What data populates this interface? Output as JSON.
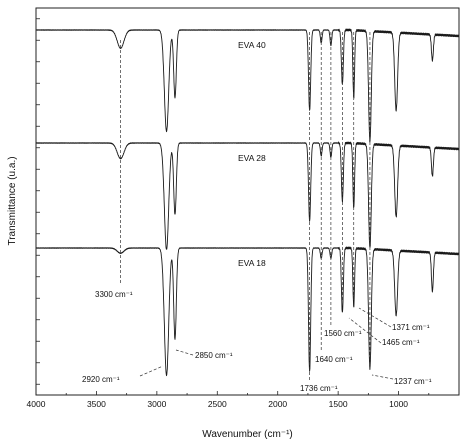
{
  "chart_data": {
    "type": "line",
    "title": "",
    "xlabel": "Wavenumber (cm⁻¹)",
    "ylabel": "Transmittance (u.a.)",
    "xlim": [
      4000,
      500
    ],
    "x_reversed": true,
    "x_ticks": [
      4000,
      3500,
      3000,
      2500,
      2000,
      1500,
      1000
    ],
    "y_tick_count": 18,
    "y_tick_labels_shown": false,
    "grid": false,
    "legend": "none",
    "series": [
      {
        "name": "EVA 40",
        "offset_level": 3,
        "peaks": [
          [
            3300,
            0.14
          ],
          [
            2920,
            0.78
          ],
          [
            2850,
            0.52
          ],
          [
            1736,
            0.62
          ],
          [
            1640,
            0.1
          ],
          [
            1560,
            0.12
          ],
          [
            1465,
            0.42
          ],
          [
            1371,
            0.52
          ],
          [
            1237,
            0.85
          ],
          [
            1020,
            0.6
          ],
          [
            720,
            0.2
          ]
        ]
      },
      {
        "name": "EVA  28",
        "offset_level": 2,
        "peaks": [
          [
            3300,
            0.12
          ],
          [
            2920,
            0.82
          ],
          [
            2850,
            0.55
          ],
          [
            1736,
            0.6
          ],
          [
            1640,
            0.1
          ],
          [
            1560,
            0.11
          ],
          [
            1465,
            0.45
          ],
          [
            1371,
            0.5
          ],
          [
            1237,
            0.8
          ],
          [
            1020,
            0.55
          ],
          [
            720,
            0.22
          ]
        ]
      },
      {
        "name": "EVA  18",
        "offset_level": 1,
        "peaks": [
          [
            3300,
            0.04
          ],
          [
            2920,
            0.98
          ],
          [
            2850,
            0.7
          ],
          [
            1736,
            0.95
          ],
          [
            1640,
            0.08
          ],
          [
            1560,
            0.08
          ],
          [
            1465,
            0.5
          ],
          [
            1371,
            0.45
          ],
          [
            1237,
            0.92
          ],
          [
            1020,
            0.5
          ],
          [
            720,
            0.3
          ]
        ]
      }
    ],
    "annotations": [
      {
        "text": "3300 cm⁻¹",
        "x": 3300
      },
      {
        "text": "2920 cm⁻¹",
        "x": 2920
      },
      {
        "text": "2850 cm⁻¹",
        "x": 2850
      },
      {
        "text": "1736 cm⁻¹",
        "x": 1736
      },
      {
        "text": "1640 cm⁻¹",
        "x": 1640
      },
      {
        "text": "1560 cm⁻¹",
        "x": 1560
      },
      {
        "text": "1465 cm⁻¹",
        "x": 1465
      },
      {
        "text": "1371 cm⁻¹",
        "x": 1371
      },
      {
        "text": "1237 cm⁻¹",
        "x": 1237
      }
    ]
  }
}
